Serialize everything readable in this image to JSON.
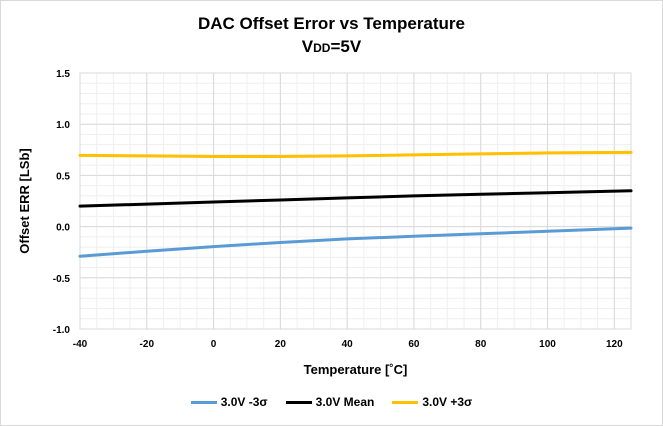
{
  "chart_data": {
    "type": "line",
    "title": "DAC Offset Error vs Temperature",
    "subtitle_main": "V",
    "subtitle_sub": "DD",
    "subtitle_tail": "=5V",
    "xlabel": "Temperature [˚C]",
    "ylabel": "Offset ERR [LSb]",
    "xlim": [
      -40,
      125
    ],
    "ylim": [
      -1.0,
      1.5
    ],
    "x_ticks": [
      -40,
      -20,
      0,
      20,
      40,
      60,
      80,
      100,
      120
    ],
    "x_tick_labels": [
      "-40",
      "-20",
      "0",
      "20",
      "40",
      "60",
      "80",
      "100",
      "120"
    ],
    "y_ticks": [
      -1.0,
      -0.5,
      0.0,
      0.5,
      1.0,
      1.5
    ],
    "y_tick_labels": [
      "-1.0",
      "-0.5",
      "0.0",
      "0.5",
      "1.0",
      "1.5"
    ],
    "grid": true,
    "legend_position": "bottom",
    "x": [
      -40,
      -20,
      0,
      20,
      40,
      60,
      80,
      100,
      125
    ],
    "series": [
      {
        "name": "3.0V -3σ",
        "color": "#5b9bd5",
        "values": [
          -0.29,
          -0.24,
          -0.195,
          -0.155,
          -0.12,
          -0.095,
          -0.07,
          -0.045,
          -0.015
        ]
      },
      {
        "name": "3.0V Mean",
        "color": "#000000",
        "values": [
          0.2,
          0.22,
          0.24,
          0.26,
          0.28,
          0.3,
          0.315,
          0.33,
          0.35
        ]
      },
      {
        "name": "3.0V +3σ",
        "color": "#ffc000",
        "values": [
          0.695,
          0.69,
          0.685,
          0.685,
          0.69,
          0.7,
          0.71,
          0.72,
          0.725
        ]
      }
    ]
  }
}
